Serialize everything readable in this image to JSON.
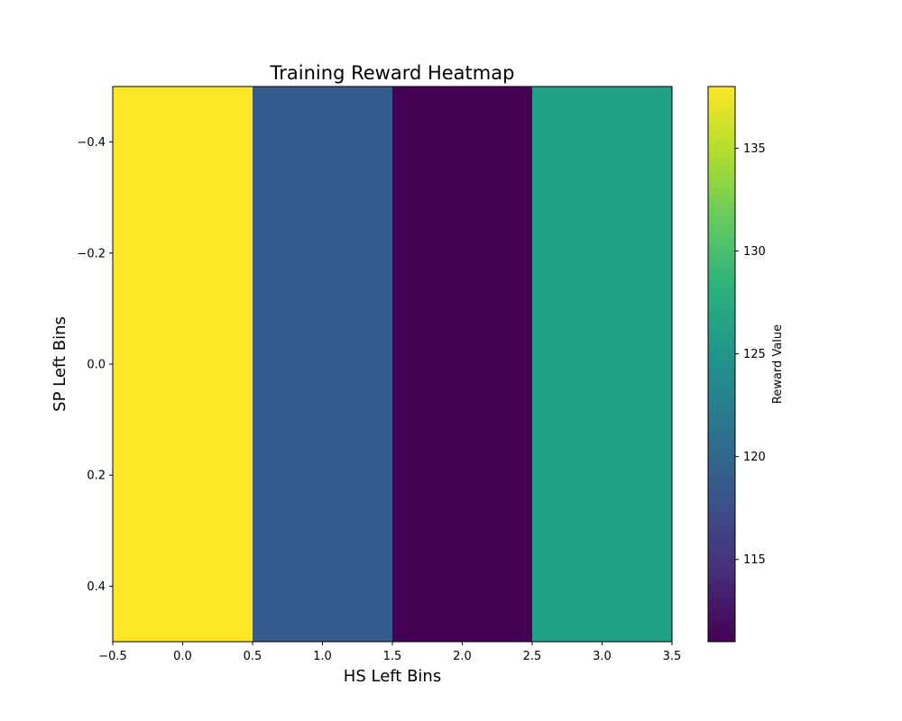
{
  "chart_data": {
    "type": "heatmap",
    "title": "Training Reward Heatmap",
    "xlabel": "HS Left Bins",
    "ylabel": "SP Left Bins",
    "colorbar_label": "Reward Value",
    "colormap": "viridis",
    "x_centers": [
      0,
      1,
      2,
      3
    ],
    "y_centers": [
      0
    ],
    "xlim": [
      -0.5,
      3.5
    ],
    "ylim": [
      0.5,
      -0.5
    ],
    "values": [
      [
        138,
        119,
        111,
        127
      ]
    ],
    "x_ticks": [
      -0.5,
      0.0,
      0.5,
      1.0,
      1.5,
      2.0,
      2.5,
      3.0,
      3.5
    ],
    "x_tick_labels": [
      "−0.5",
      "0.0",
      "0.5",
      "1.0",
      "1.5",
      "2.0",
      "2.5",
      "3.0",
      "3.5"
    ],
    "y_ticks": [
      -0.4,
      -0.2,
      0.0,
      0.2,
      0.4
    ],
    "y_tick_labels": [
      "−0.4",
      "−0.2",
      "0.0",
      "0.2",
      "0.4"
    ],
    "colorbar_range": [
      111,
      138
    ],
    "colorbar_ticks": [
      115,
      120,
      125,
      130,
      135
    ],
    "colorbar_tick_labels": [
      "115",
      "120",
      "125",
      "130",
      "135"
    ],
    "cell_colors": [
      "#fde725",
      "#365c8d",
      "#440154",
      "#1fa187"
    ],
    "grid": false
  }
}
